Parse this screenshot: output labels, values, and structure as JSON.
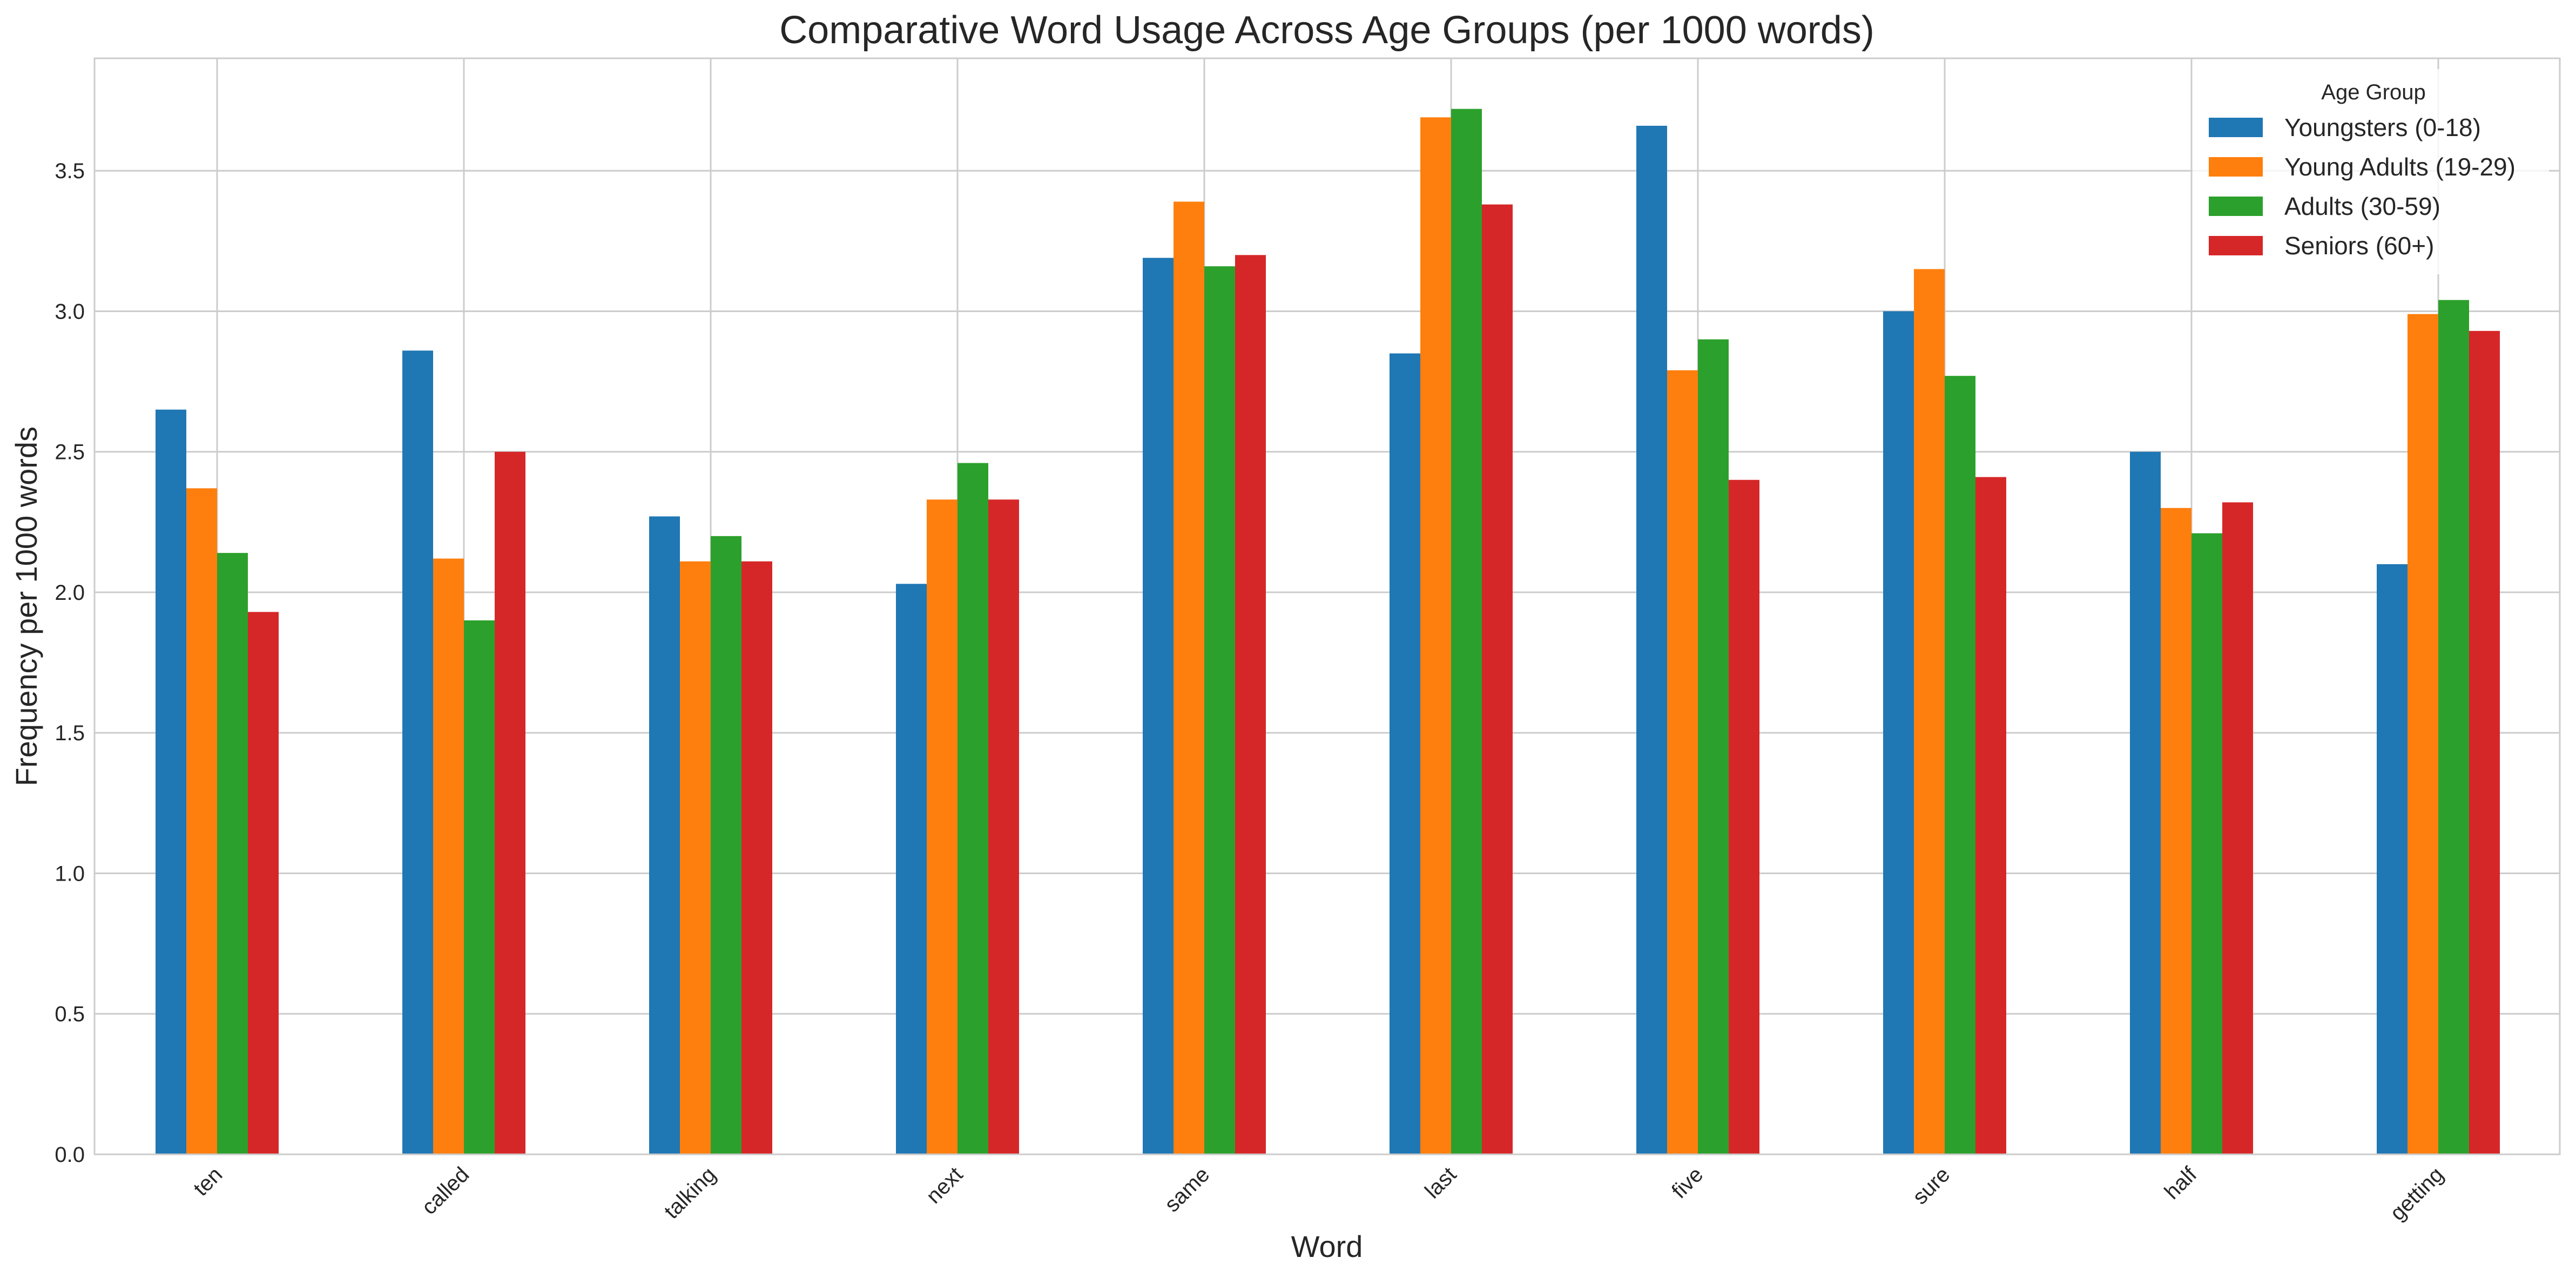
{
  "chart_data": {
    "type": "bar",
    "title": "Comparative Word Usage Across Age Groups (per 1000 words)",
    "xlabel": "Word",
    "ylabel": "Frequency per 1000 words",
    "categories": [
      "ten",
      "called",
      "talking",
      "next",
      "same",
      "last",
      "five",
      "sure",
      "half",
      "getting"
    ],
    "series": [
      {
        "name": "Youngsters (0-18)",
        "color": "#1f77b4",
        "values": [
          2.65,
          2.86,
          2.27,
          2.03,
          3.19,
          2.85,
          3.66,
          3.0,
          2.5,
          2.1
        ]
      },
      {
        "name": "Young Adults (19-29)",
        "color": "#ff7f0e",
        "values": [
          2.37,
          2.12,
          2.11,
          2.33,
          3.39,
          3.69,
          2.79,
          3.15,
          2.3,
          2.99
        ]
      },
      {
        "name": "Adults (30-59)",
        "color": "#2ca02c",
        "values": [
          2.14,
          1.9,
          2.2,
          2.46,
          3.16,
          3.72,
          2.9,
          2.77,
          2.21,
          3.04
        ]
      },
      {
        "name": "Seniors (60+)",
        "color": "#d62728",
        "values": [
          1.93,
          2.5,
          2.11,
          2.33,
          3.2,
          3.38,
          2.4,
          2.41,
          2.32,
          2.93
        ]
      }
    ],
    "yticks": [
      "0.0",
      "0.5",
      "1.0",
      "1.5",
      "2.0",
      "2.5",
      "3.0",
      "3.5"
    ],
    "ylim": [
      0,
      3.9
    ],
    "grid": true,
    "legend": {
      "title": "Age Group",
      "placement": "top-right"
    }
  }
}
